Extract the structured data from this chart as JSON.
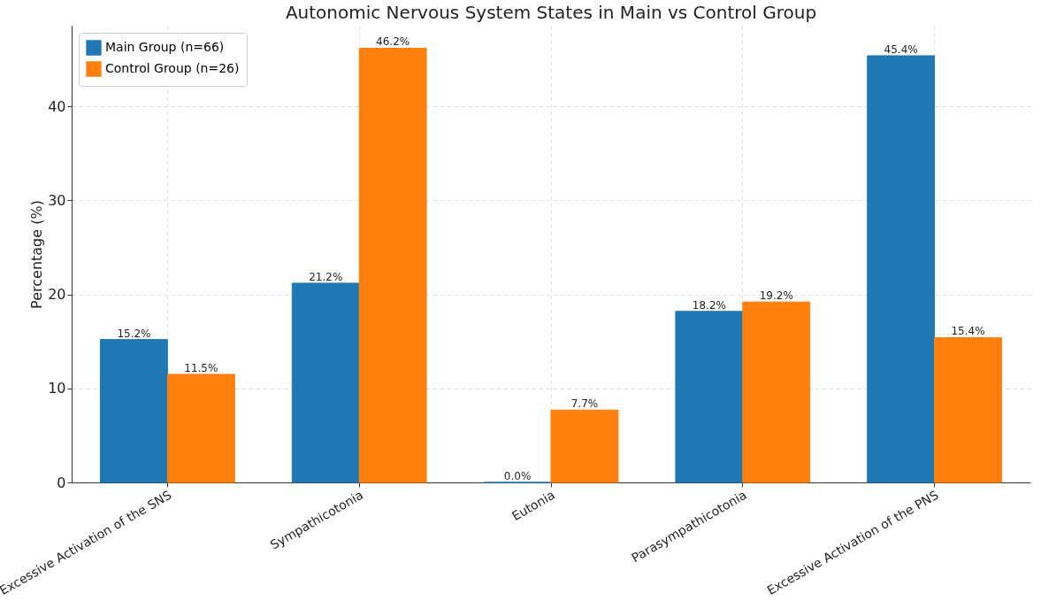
{
  "chart_data": {
    "type": "bar",
    "title": "Autonomic Nervous System States in Main vs Control Group",
    "ylabel": "Percentage (%)",
    "categories": [
      "Excessive Activation of the SNS",
      "Sympathicotonia",
      "Eutonia",
      "Parasympathicotonia",
      "Excessive Activation of the PNS"
    ],
    "series": [
      {
        "name": "Main Group (n=66)",
        "color": "#1f77b4",
        "values": [
          15.2,
          21.2,
          0.0,
          18.2,
          45.4
        ],
        "value_labels": [
          "15.2%",
          "21.2%",
          "0.0%",
          "18.2%",
          "45.4%"
        ]
      },
      {
        "name": "Control Group (n=26)",
        "color": "#ff7f0e",
        "values": [
          11.5,
          46.2,
          7.7,
          19.2,
          15.4
        ],
        "value_labels": [
          "11.5%",
          "46.2%",
          "7.7%",
          "19.2%",
          "15.4%"
        ]
      }
    ],
    "ylim": [
      0,
      48.6
    ],
    "yticks": [
      0,
      10,
      20,
      30,
      40
    ],
    "grid": true,
    "legend": "top left"
  }
}
